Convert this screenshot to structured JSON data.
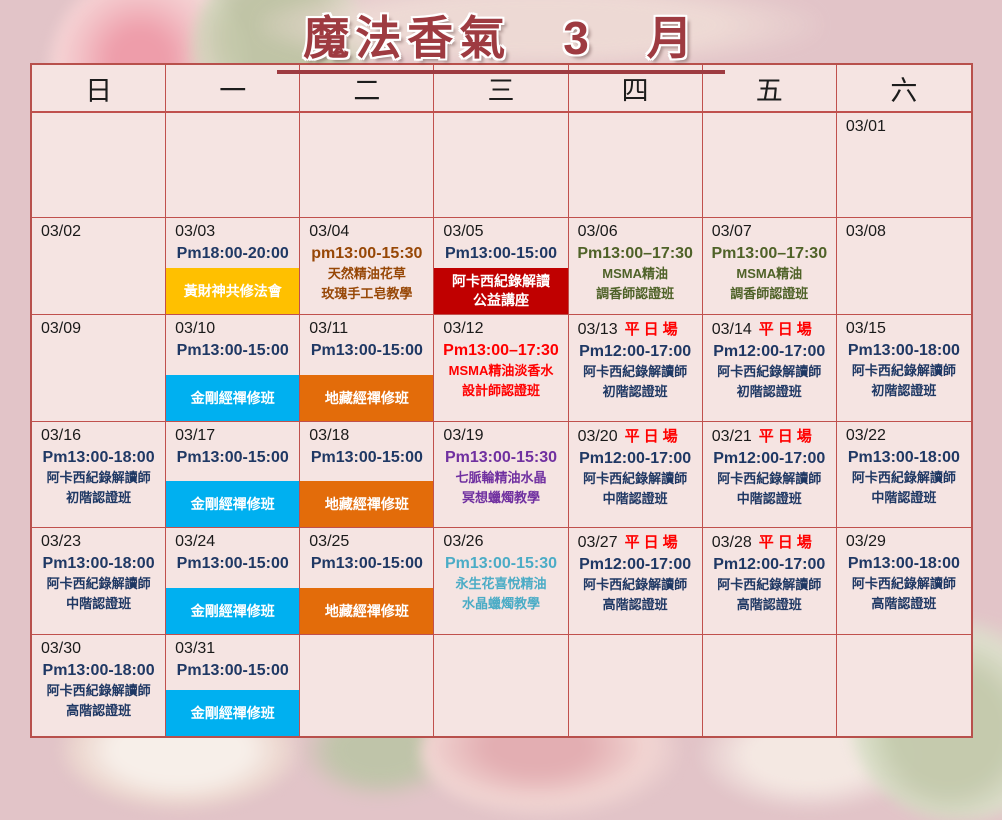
{
  "title": {
    "text": "魔法香氣　3　月"
  },
  "weekdays": [
    "日",
    "一",
    "二",
    "三",
    "四",
    "五",
    "六"
  ],
  "colors": {
    "page_bg": "#E2C4C8",
    "cell_bg": "#F5E4E2",
    "grid_border": "#C0504D",
    "title": "#9E3B41",
    "date_text": "#1A1A1A",
    "tag_red": "#FF0000",
    "navy": "#1F3864",
    "red": "#FF0000",
    "brown": "#974706",
    "olive": "#4F6228",
    "purple": "#7030A0",
    "teal": "#4BACC6",
    "band_text": "#FFFFFF",
    "yellow": "#FFC000",
    "darkred": "#C00000",
    "cyan": "#00B0F0",
    "orange": "#E36C0A"
  },
  "weeks": [
    {
      "days": [
        {},
        {},
        {},
        {},
        {},
        {},
        {
          "date": "03/01"
        }
      ]
    },
    {
      "days": [
        {
          "date": "03/02"
        },
        {
          "date": "03/03",
          "time": "Pm18:00-20:00",
          "time_color": "navy",
          "band_bg": "yellow",
          "band_lines": [
            "黃財神共修法會"
          ]
        },
        {
          "date": "03/04",
          "time": "pm13:00-15:30",
          "time_color": "brown",
          "body_color": "brown",
          "body_lines": [
            "天然精油花草",
            "玫瑰手工皂教學"
          ]
        },
        {
          "date": "03/05",
          "time": "Pm13:00-15:00",
          "time_color": "navy",
          "band_bg": "darkred",
          "band_lines": [
            "阿卡西紀錄解讀",
            "公益講座"
          ]
        },
        {
          "date": "03/06",
          "time": "Pm13:00–17:30",
          "time_color": "olive",
          "body_color": "olive",
          "body_lines": [
            "MSMA精油",
            "調香師認證班"
          ]
        },
        {
          "date": "03/07",
          "time": "Pm13:00–17:30",
          "time_color": "olive",
          "body_color": "olive",
          "body_lines": [
            "MSMA精油",
            "調香師認證班"
          ]
        },
        {
          "date": "03/08"
        }
      ]
    },
    {
      "days": [
        {
          "date": "03/09"
        },
        {
          "date": "03/10",
          "time": "Pm13:00-15:00",
          "time_color": "navy",
          "band_bg": "cyan",
          "band_lines": [
            "金剛經禪修班"
          ]
        },
        {
          "date": "03/11",
          "time": "Pm13:00-15:00",
          "time_color": "navy",
          "band_bg": "orange",
          "band_lines": [
            "地藏經禪修班"
          ]
        },
        {
          "date": "03/12",
          "time": "Pm13:00–17:30",
          "time_color": "red",
          "body_color": "red",
          "body_lines": [
            "MSMA精油淡香水",
            "設計師認證班"
          ]
        },
        {
          "date": "03/13",
          "tag": "平日場",
          "time": "Pm12:00-17:00",
          "time_color": "navy",
          "body_color": "navy",
          "body_lines": [
            "阿卡西紀錄解讀師",
            "初階認證班"
          ]
        },
        {
          "date": "03/14",
          "tag": "平日場",
          "time": "Pm12:00-17:00",
          "time_color": "navy",
          "body_color": "navy",
          "body_lines": [
            "阿卡西紀錄解讀師",
            "初階認證班"
          ]
        },
        {
          "date": "03/15",
          "time": "Pm13:00-18:00",
          "time_color": "navy",
          "body_color": "navy",
          "body_lines": [
            "阿卡西紀錄解讀師",
            "初階認證班"
          ]
        }
      ]
    },
    {
      "days": [
        {
          "date": "03/16",
          "time": "Pm13:00-18:00",
          "time_color": "navy",
          "body_color": "navy",
          "body_lines": [
            "阿卡西紀錄解讀師",
            "初階認證班"
          ]
        },
        {
          "date": "03/17",
          "time": "Pm13:00-15:00",
          "time_color": "navy",
          "band_bg": "cyan",
          "band_lines": [
            "金剛經禪修班"
          ]
        },
        {
          "date": "03/18",
          "time": "Pm13:00-15:00",
          "time_color": "navy",
          "band_bg": "orange",
          "band_lines": [
            "地藏經禪修班"
          ]
        },
        {
          "date": "03/19",
          "time": "Pm13:00-15:30",
          "time_color": "purple",
          "body_color": "purple",
          "body_lines": [
            "七脈輪精油水晶",
            "冥想蠟燭教學"
          ]
        },
        {
          "date": "03/20",
          "tag": "平日場",
          "time": "Pm12:00-17:00",
          "time_color": "navy",
          "body_color": "navy",
          "body_lines": [
            "阿卡西紀錄解讀師",
            "中階認證班"
          ]
        },
        {
          "date": "03/21",
          "tag": "平日場",
          "time": "Pm12:00-17:00",
          "time_color": "navy",
          "body_color": "navy",
          "body_lines": [
            "阿卡西紀錄解讀師",
            "中階認證班"
          ]
        },
        {
          "date": "03/22",
          "time": "Pm13:00-18:00",
          "time_color": "navy",
          "body_color": "navy",
          "body_lines": [
            "阿卡西紀錄解讀師",
            "中階認證班"
          ]
        }
      ]
    },
    {
      "days": [
        {
          "date": "03/23",
          "time": "Pm13:00-18:00",
          "time_color": "navy",
          "body_color": "navy",
          "body_lines": [
            "阿卡西紀錄解讀師",
            "中階認證班"
          ]
        },
        {
          "date": "03/24",
          "time": "Pm13:00-15:00",
          "time_color": "navy",
          "band_bg": "cyan",
          "band_lines": [
            "金剛經禪修班"
          ]
        },
        {
          "date": "03/25",
          "time": "Pm13:00-15:00",
          "time_color": "navy",
          "band_bg": "orange",
          "band_lines": [
            "地藏經禪修班"
          ]
        },
        {
          "date": "03/26",
          "time": "Pm13:00-15:30",
          "time_color": "teal",
          "body_color": "teal",
          "body_lines": [
            "永生花喜悅精油",
            "水晶蠟燭教學"
          ]
        },
        {
          "date": "03/27",
          "tag": "平日場",
          "time": "Pm12:00-17:00",
          "time_color": "navy",
          "body_color": "navy",
          "body_lines": [
            "阿卡西紀錄解讀師",
            "高階認證班"
          ]
        },
        {
          "date": "03/28",
          "tag": "平日場",
          "time": "Pm12:00-17:00",
          "time_color": "navy",
          "body_color": "navy",
          "body_lines": [
            "阿卡西紀錄解讀師",
            "高階認證班"
          ]
        },
        {
          "date": "03/29",
          "time": "Pm13:00-18:00",
          "time_color": "navy",
          "body_color": "navy",
          "body_lines": [
            "阿卡西紀錄解讀師",
            "高階認證班"
          ]
        }
      ]
    },
    {
      "days": [
        {
          "date": "03/30",
          "time": "Pm13:00-18:00",
          "time_color": "navy",
          "body_color": "navy",
          "body_lines": [
            "阿卡西紀錄解讀師",
            "高階認證班"
          ]
        },
        {
          "date": "03/31",
          "time": "Pm13:00-15:00",
          "time_color": "navy",
          "band_bg": "cyan",
          "band_lines": [
            "金剛經禪修班"
          ]
        },
        {},
        {},
        {},
        {},
        {}
      ]
    }
  ]
}
